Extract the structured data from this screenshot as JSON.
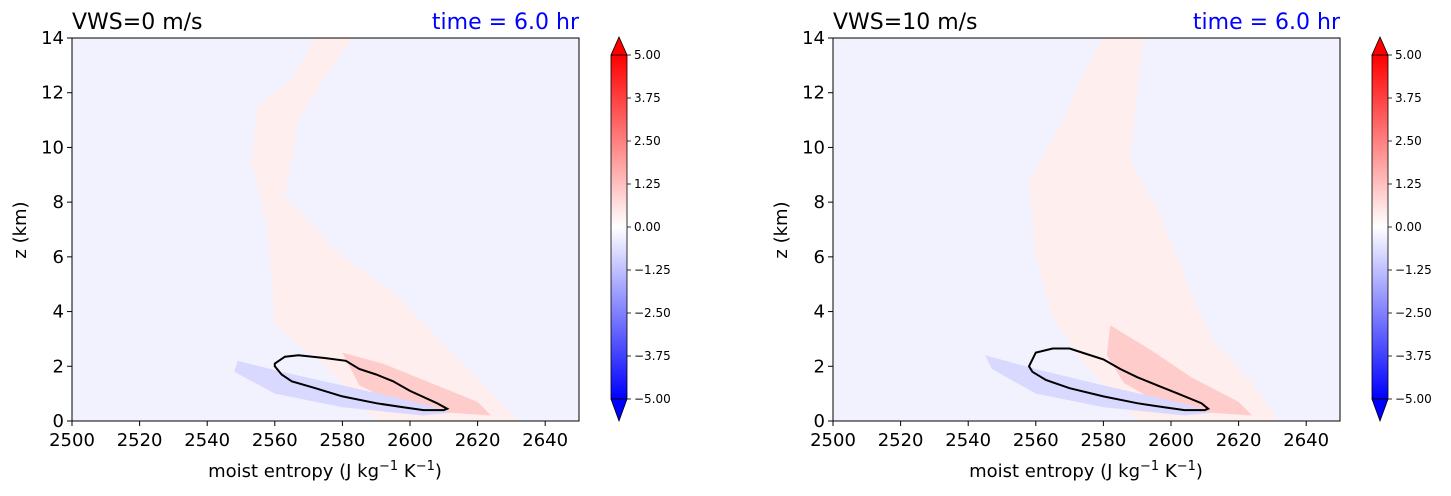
{
  "figure": {
    "panels": [
      {
        "title_left": "VWS=0 m/s",
        "title_right": "time = 6.0 hr",
        "xlabel_main": "moist entropy (J kg",
        "xlabel_sup1": "−1",
        "xlabel_mid": " K",
        "xlabel_sup2": "−1",
        "xlabel_end": ")",
        "ylabel": "z (km)"
      },
      {
        "title_left": "VWS=10 m/s",
        "title_right": "time = 6.0 hr",
        "xlabel_main": "moist entropy (J kg",
        "xlabel_sup1": "−1",
        "xlabel_mid": " K",
        "xlabel_sup2": "−1",
        "xlabel_end": ")",
        "ylabel": "z (km)"
      }
    ]
  },
  "chart_data": [
    {
      "type": "heatmap",
      "title": "VWS=0 m/s",
      "subtitle": "time = 6.0 hr",
      "xlabel": "moist entropy (J kg−1 K−1)",
      "ylabel": "z (km)",
      "xlim": [
        2500,
        2650
      ],
      "ylim": [
        0,
        14
      ],
      "xticks": [
        "2500",
        "2520",
        "2540",
        "2560",
        "2580",
        "2600",
        "2620",
        "2640"
      ],
      "yticks": [
        "0",
        "2",
        "4",
        "6",
        "8",
        "10",
        "12",
        "14"
      ],
      "colorbar": {
        "range": [
          -5.0,
          5.0
        ],
        "ticks": [
          "5.00",
          "3.75",
          "2.50",
          "1.25",
          "0.00",
          "−1.25",
          "−2.50",
          "−3.75",
          "−5.00"
        ],
        "colormap": "bwr",
        "extend": "both"
      },
      "colors": {
        "negative": "#0000ff",
        "positive": "#ff0000",
        "near_zero": "#f2f2ff",
        "contour": "#000000",
        "title_right_color": "#0000ff"
      },
      "positive_region": [
        [
          2572,
          14
        ],
        [
          2583,
          14
        ],
        [
          2575,
          12.6
        ],
        [
          2567,
          11
        ],
        [
          2563,
          8.2
        ],
        [
          2580,
          6
        ],
        [
          2596,
          4.6
        ],
        [
          2610,
          2.8
        ],
        [
          2622,
          1.3
        ],
        [
          2632,
          0
        ],
        [
          2590,
          0
        ],
        [
          2575,
          2
        ],
        [
          2560,
          3.5
        ],
        [
          2558,
          7
        ],
        [
          2553,
          9.5
        ],
        [
          2555,
          11.5
        ],
        [
          2565,
          12.5
        ]
      ],
      "positive_core": [
        [
          2580,
          2.5
        ],
        [
          2592,
          2.1
        ],
        [
          2606,
          1.4
        ],
        [
          2620,
          0.7
        ],
        [
          2624,
          0.2
        ],
        [
          2600,
          0.4
        ],
        [
          2585,
          1.3
        ]
      ],
      "negative_region": [
        [
          2549,
          2.2
        ],
        [
          2562,
          1.8
        ],
        [
          2580,
          1.3
        ],
        [
          2605,
          0.6
        ],
        [
          2612,
          0.3
        ],
        [
          2604,
          0.2
        ],
        [
          2580,
          0.5
        ],
        [
          2560,
          1.0
        ],
        [
          2548,
          1.8
        ]
      ],
      "black_contour": [
        [
          2560,
          2.1
        ],
        [
          2563,
          2.35
        ],
        [
          2567,
          2.4
        ],
        [
          2575,
          2.3
        ],
        [
          2581,
          2.2
        ],
        [
          2585,
          1.9
        ],
        [
          2590,
          1.7
        ],
        [
          2595,
          1.45
        ],
        [
          2600,
          1.1
        ],
        [
          2608,
          0.65
        ],
        [
          2611,
          0.45
        ],
        [
          2610,
          0.4
        ],
        [
          2604,
          0.4
        ],
        [
          2598,
          0.5
        ],
        [
          2590,
          0.65
        ],
        [
          2580,
          0.9
        ],
        [
          2572,
          1.2
        ],
        [
          2565,
          1.45
        ],
        [
          2562,
          1.7
        ],
        [
          2560,
          2.0
        ]
      ]
    },
    {
      "type": "heatmap",
      "title": "VWS=10 m/s",
      "subtitle": "time = 6.0 hr",
      "xlabel": "moist entropy (J kg−1 K−1)",
      "ylabel": "z (km)",
      "xlim": [
        2500,
        2650
      ],
      "ylim": [
        0,
        14
      ],
      "xticks": [
        "2500",
        "2520",
        "2540",
        "2560",
        "2580",
        "2600",
        "2620",
        "2640"
      ],
      "yticks": [
        "0",
        "2",
        "4",
        "6",
        "8",
        "10",
        "12",
        "14"
      ],
      "colorbar": {
        "range": [
          -5.0,
          5.0
        ],
        "ticks": [
          "5.00",
          "3.75",
          "2.50",
          "1.25",
          "0.00",
          "−1.25",
          "−2.50",
          "−3.75",
          "−5.00"
        ],
        "colormap": "bwr",
        "extend": "both"
      },
      "colors": {
        "negative": "#0000ff",
        "positive": "#ff0000",
        "near_zero": "#f2f2ff",
        "contour": "#000000",
        "title_right_color": "#0000ff"
      },
      "positive_region": [
        [
          2580,
          14
        ],
        [
          2592,
          14
        ],
        [
          2590,
          12
        ],
        [
          2588,
          9.5
        ],
        [
          2597,
          7.5
        ],
        [
          2605,
          5
        ],
        [
          2612,
          3
        ],
        [
          2624,
          1.4
        ],
        [
          2632,
          0
        ],
        [
          2590,
          0
        ],
        [
          2575,
          2
        ],
        [
          2565,
          3.8
        ],
        [
          2560,
          6
        ],
        [
          2558,
          8.8
        ],
        [
          2568,
          11
        ],
        [
          2574,
          12.7
        ]
      ],
      "positive_core": [
        [
          2582,
          3.5
        ],
        [
          2594,
          2.6
        ],
        [
          2606,
          1.6
        ],
        [
          2620,
          0.7
        ],
        [
          2624,
          0.2
        ],
        [
          2600,
          0.4
        ],
        [
          2586,
          1.4
        ],
        [
          2581,
          2.4
        ]
      ],
      "negative_region": [
        [
          2545,
          2.4
        ],
        [
          2560,
          1.9
        ],
        [
          2580,
          1.3
        ],
        [
          2605,
          0.6
        ],
        [
          2612,
          0.3
        ],
        [
          2604,
          0.2
        ],
        [
          2580,
          0.5
        ],
        [
          2560,
          1.0
        ],
        [
          2547,
          1.9
        ]
      ],
      "black_contour": [
        [
          2558,
          2.0
        ],
        [
          2560,
          2.5
        ],
        [
          2565,
          2.65
        ],
        [
          2570,
          2.65
        ],
        [
          2575,
          2.45
        ],
        [
          2580,
          2.25
        ],
        [
          2585,
          1.9
        ],
        [
          2590,
          1.6
        ],
        [
          2596,
          1.3
        ],
        [
          2602,
          1.0
        ],
        [
          2609,
          0.65
        ],
        [
          2611,
          0.45
        ],
        [
          2610,
          0.4
        ],
        [
          2604,
          0.4
        ],
        [
          2598,
          0.5
        ],
        [
          2590,
          0.65
        ],
        [
          2580,
          0.9
        ],
        [
          2570,
          1.2
        ],
        [
          2563,
          1.5
        ],
        [
          2559,
          1.8
        ]
      ]
    }
  ]
}
